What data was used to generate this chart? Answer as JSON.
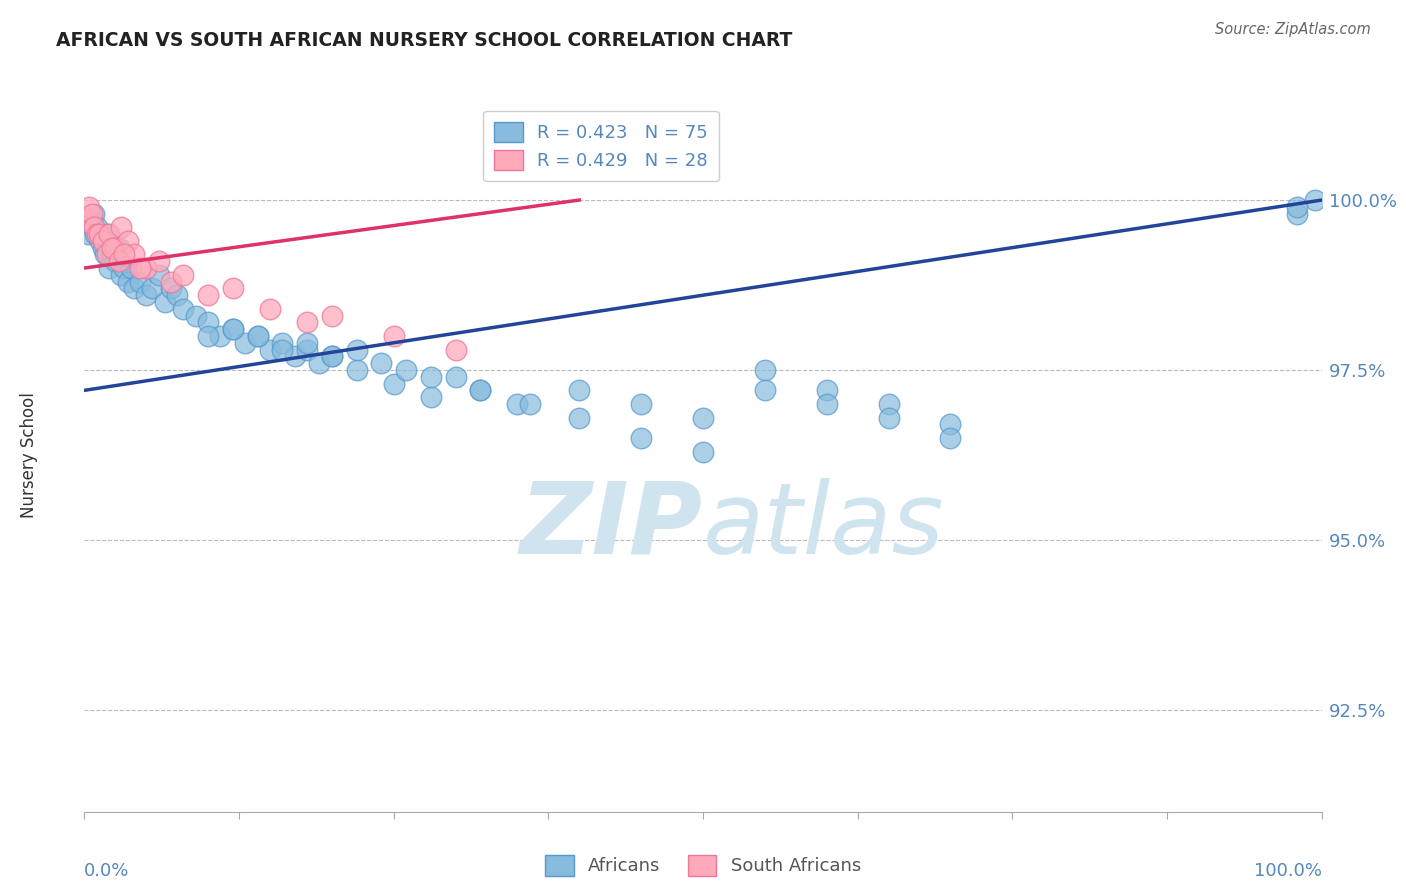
{
  "title": "AFRICAN VS SOUTH AFRICAN NURSERY SCHOOL CORRELATION CHART",
  "source": "Source: ZipAtlas.com",
  "ylabel": "Nursery School",
  "legend_label_blue": "Africans",
  "legend_label_pink": "South Africans",
  "R_blue": 0.423,
  "N_blue": 75,
  "R_pink": 0.429,
  "N_pink": 28,
  "xlim": [
    0.0,
    100.0
  ],
  "ylim": [
    91.0,
    101.5
  ],
  "yticks": [
    92.5,
    95.0,
    97.5,
    100.0
  ],
  "ytick_labels": [
    "92.5%",
    "95.0%",
    "97.5%",
    "100.0%"
  ],
  "grid_color": "#bbbbbb",
  "background_color": "#ffffff",
  "blue_scatter_color": "#88bbdd",
  "blue_edge_color": "#5599cc",
  "pink_scatter_color": "#ffaabb",
  "pink_edge_color": "#ee7799",
  "blue_line_color": "#224499",
  "pink_line_color": "#dd3366",
  "title_color": "#222222",
  "axis_label_color": "#5588bb",
  "watermark_color": "#d0e4f0",
  "blue_x": [
    0.3,
    0.5,
    0.7,
    0.8,
    0.9,
    1.0,
    1.2,
    1.3,
    1.5,
    1.7,
    1.8,
    2.0,
    2.2,
    2.5,
    2.8,
    3.0,
    3.2,
    3.5,
    3.8,
    4.0,
    4.5,
    5.0,
    5.5,
    6.0,
    6.5,
    7.0,
    7.5,
    8.0,
    9.0,
    10.0,
    11.0,
    12.0,
    13.0,
    14.0,
    15.0,
    16.0,
    17.0,
    18.0,
    19.0,
    20.0,
    22.0,
    25.0,
    28.0,
    30.0,
    32.0,
    35.0,
    40.0,
    45.0,
    50.0,
    55.0,
    60.0,
    65.0,
    70.0,
    98.0,
    99.5,
    10.0,
    12.0,
    14.0,
    16.0,
    18.0,
    20.0,
    22.0,
    24.0,
    26.0,
    28.0,
    32.0,
    36.0,
    40.0,
    45.0,
    50.0,
    55.0,
    60.0,
    65.0,
    70.0,
    98.0
  ],
  "blue_y": [
    99.5,
    99.7,
    99.6,
    99.8,
    99.5,
    99.6,
    99.5,
    99.4,
    99.3,
    99.2,
    99.5,
    99.0,
    99.2,
    99.1,
    99.3,
    98.9,
    99.0,
    98.8,
    99.0,
    98.7,
    98.8,
    98.6,
    98.7,
    98.9,
    98.5,
    98.7,
    98.6,
    98.4,
    98.3,
    98.2,
    98.0,
    98.1,
    97.9,
    98.0,
    97.8,
    97.9,
    97.7,
    97.8,
    97.6,
    97.7,
    97.5,
    97.3,
    97.1,
    97.4,
    97.2,
    97.0,
    97.2,
    97.0,
    96.8,
    97.5,
    97.2,
    97.0,
    96.7,
    99.8,
    100.0,
    98.0,
    98.1,
    98.0,
    97.8,
    97.9,
    97.7,
    97.8,
    97.6,
    97.5,
    97.4,
    97.2,
    97.0,
    96.8,
    96.5,
    96.3,
    97.2,
    97.0,
    96.8,
    96.5,
    99.9
  ],
  "pink_x": [
    0.2,
    0.4,
    0.6,
    0.8,
    1.0,
    1.2,
    1.5,
    1.8,
    2.0,
    2.5,
    3.0,
    3.5,
    4.0,
    5.0,
    6.0,
    7.0,
    8.0,
    10.0,
    12.0,
    15.0,
    18.0,
    20.0,
    25.0,
    30.0,
    2.2,
    2.8,
    3.2,
    4.5
  ],
  "pink_y": [
    99.7,
    99.9,
    99.8,
    99.6,
    99.5,
    99.5,
    99.4,
    99.2,
    99.5,
    99.3,
    99.6,
    99.4,
    99.2,
    99.0,
    99.1,
    98.8,
    98.9,
    98.6,
    98.7,
    98.4,
    98.2,
    98.3,
    98.0,
    97.8,
    99.3,
    99.1,
    99.2,
    99.0
  ],
  "blue_trend_x": [
    0,
    100
  ],
  "blue_trend_y": [
    97.2,
    100.0
  ],
  "pink_trend_x": [
    0,
    40
  ],
  "pink_trend_y": [
    99.0,
    100.0
  ]
}
